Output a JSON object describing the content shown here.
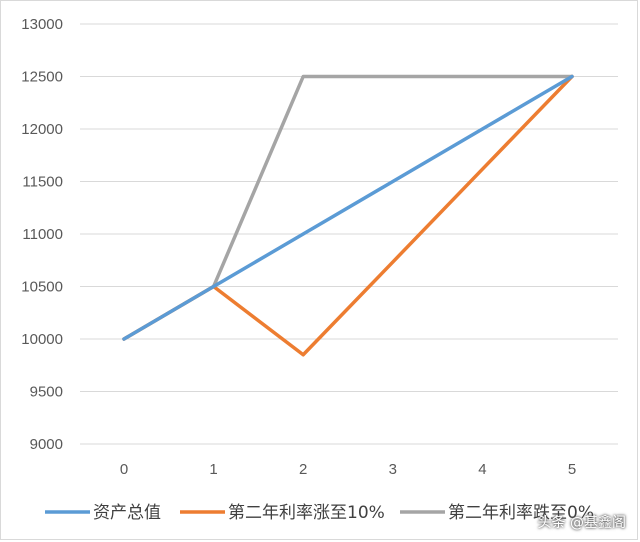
{
  "chart_data": {
    "type": "line",
    "title": "",
    "xlabel": "",
    "ylabel": "",
    "categories": [
      "0",
      "1",
      "2",
      "3",
      "4",
      "5"
    ],
    "ylim": [
      9000,
      13000
    ],
    "yticks": [
      9000,
      9500,
      10000,
      10500,
      11000,
      11500,
      12000,
      12500,
      13000
    ],
    "grid": true,
    "legend_position": "bottom",
    "series": [
      {
        "name": "资产总值",
        "color": "#5b9bd5",
        "values": [
          10000,
          10500,
          11000,
          11500,
          12000,
          12500
        ]
      },
      {
        "name": "第二年利率涨至10%",
        "color": "#ed7d31",
        "values": [
          10000,
          10500,
          9850,
          10733,
          11617,
          12500
        ]
      },
      {
        "name": "第二年利率跌至0%",
        "color": "#a5a5a5",
        "values": [
          10000,
          10500,
          12500,
          12500,
          12500,
          12500
        ]
      }
    ]
  },
  "watermark": "头条 @基鑫阁"
}
